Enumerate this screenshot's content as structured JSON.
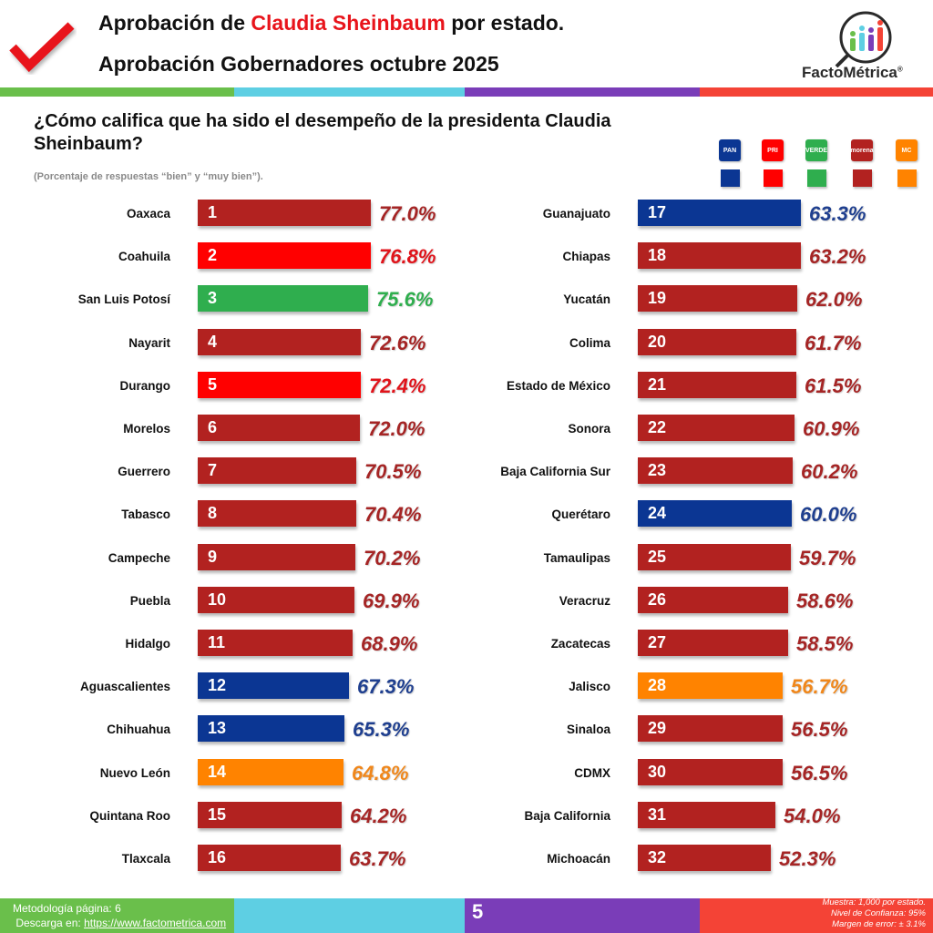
{
  "header": {
    "title_line1_prefix": "Aprobación de ",
    "title_line1_highlight": "Claudia Sheinbaum",
    "title_line1_suffix": " por estado.",
    "title_line2": "Aprobación Gobernadores octubre 2025",
    "logo_text": "FactoMétrica",
    "logo_registered": "®",
    "check_icon": "checkmark-icon"
  },
  "stripe_colors": [
    "#6abf4b",
    "#5ecfe3",
    "#7a3db8",
    "#f44336"
  ],
  "question": "¿Cómo califica que ha sido el desempeño de la presidenta Claudia Sheinbaum?",
  "subtitle": "(Porcentaje de respuestas “bien” y “muy bien”).",
  "legend": [
    {
      "party": "PAN",
      "logo_label": "PAN",
      "color": "#0b3693"
    },
    {
      "party": "PRI",
      "logo_label": "PRI",
      "color": "#ff0000"
    },
    {
      "party": "Verde",
      "logo_label": "VERDE",
      "color": "#2fae4e"
    },
    {
      "party": "Morena",
      "logo_label": "morena",
      "color": "#b22220"
    },
    {
      "party": "Movimiento Ciudadano",
      "logo_label": "MC",
      "color": "#ff8300"
    }
  ],
  "chart_data": {
    "type": "bar",
    "orientation": "horizontal",
    "title": "¿Cómo califica que ha sido el desempeño de la presidenta Claudia Sheinbaum?",
    "subtitle": "(Porcentaje de respuestas “bien” y “muy bien”).",
    "unit": "%",
    "party_colors": {
      "PAN": "#0b3693",
      "PRI": "#ff0000",
      "Verde": "#2fae4e",
      "Morena": "#b22220",
      "MC": "#ff8300"
    },
    "label_colors": {
      "PAN": "#1f3f8f",
      "PRI": "#e0141b",
      "Verde": "#2fae4e",
      "Morena": "#a52525",
      "MC": "#f0871b"
    },
    "columns": [
      [
        {
          "rank": 1,
          "state": "Oaxaca",
          "value": 77.0,
          "label": "77.0%",
          "party": "Morena"
        },
        {
          "rank": 2,
          "state": "Coahuila",
          "value": 76.8,
          "label": "76.8%",
          "party": "PRI"
        },
        {
          "rank": 3,
          "state": "San Luis Potosí",
          "value": 75.6,
          "label": "75.6%",
          "party": "Verde"
        },
        {
          "rank": 4,
          "state": "Nayarit",
          "value": 72.6,
          "label": "72.6%",
          "party": "Morena"
        },
        {
          "rank": 5,
          "state": "Durango",
          "value": 72.4,
          "label": "72.4%",
          "party": "PRI"
        },
        {
          "rank": 6,
          "state": "Morelos",
          "value": 72.0,
          "label": "72.0%",
          "party": "Morena"
        },
        {
          "rank": 7,
          "state": "Guerrero",
          "value": 70.5,
          "label": "70.5%",
          "party": "Morena"
        },
        {
          "rank": 8,
          "state": "Tabasco",
          "value": 70.4,
          "label": "70.4%",
          "party": "Morena"
        },
        {
          "rank": 9,
          "state": "Campeche",
          "value": 70.2,
          "label": "70.2%",
          "party": "Morena"
        },
        {
          "rank": 10,
          "state": "Puebla",
          "value": 69.9,
          "label": "69.9%",
          "party": "Morena"
        },
        {
          "rank": 11,
          "state": "Hidalgo",
          "value": 68.9,
          "label": "68.9%",
          "party": "Morena"
        },
        {
          "rank": 12,
          "state": "Aguascalientes",
          "value": 67.3,
          "label": "67.3%",
          "party": "PAN"
        },
        {
          "rank": 13,
          "state": "Chihuahua",
          "value": 65.3,
          "label": "65.3%",
          "party": "PAN"
        },
        {
          "rank": 14,
          "state": "Nuevo León",
          "value": 64.8,
          "label": "64.8%",
          "party": "MC"
        },
        {
          "rank": 15,
          "state": "Quintana Roo",
          "value": 64.2,
          "label": "64.2%",
          "party": "Morena"
        },
        {
          "rank": 16,
          "state": "Tlaxcala",
          "value": 63.7,
          "label": "63.7%",
          "party": "Morena"
        }
      ],
      [
        {
          "rank": 17,
          "state": "Guanajuato",
          "value": 63.3,
          "label": "63.3%",
          "party": "PAN"
        },
        {
          "rank": 18,
          "state": "Chiapas",
          "value": 63.2,
          "label": "63.2%",
          "party": "Morena"
        },
        {
          "rank": 19,
          "state": "Yucatán",
          "value": 62.0,
          "label": "62.0%",
          "party": "Morena"
        },
        {
          "rank": 20,
          "state": "Colima",
          "value": 61.7,
          "label": "61.7%",
          "party": "Morena"
        },
        {
          "rank": 21,
          "state": "Estado de México",
          "value": 61.5,
          "label": "61.5%",
          "party": "Morena"
        },
        {
          "rank": 22,
          "state": "Sonora",
          "value": 60.9,
          "label": "60.9%",
          "party": "Morena"
        },
        {
          "rank": 23,
          "state": "Baja California Sur",
          "value": 60.2,
          "label": "60.2%",
          "party": "Morena"
        },
        {
          "rank": 24,
          "state": "Querétaro",
          "value": 60.0,
          "label": "60.0%",
          "party": "PAN"
        },
        {
          "rank": 25,
          "state": "Tamaulipas",
          "value": 59.7,
          "label": "59.7%",
          "party": "Morena"
        },
        {
          "rank": 26,
          "state": "Veracruz",
          "value": 58.6,
          "label": "58.6%",
          "party": "Morena"
        },
        {
          "rank": 27,
          "state": "Zacatecas",
          "value": 58.5,
          "label": "58.5%",
          "party": "Morena"
        },
        {
          "rank": 28,
          "state": "Jalisco",
          "value": 56.7,
          "label": "56.7%",
          "party": "MC"
        },
        {
          "rank": 29,
          "state": "Sinaloa",
          "value": 56.5,
          "label": "56.5%",
          "party": "Morena"
        },
        {
          "rank": 30,
          "state": "CDMX",
          "value": 56.5,
          "label": "56.5%",
          "party": "Morena"
        },
        {
          "rank": 31,
          "state": "Baja California",
          "value": 54.0,
          "label": "54.0%",
          "party": "Morena"
        },
        {
          "rank": 32,
          "state": "Michoacán",
          "value": 52.3,
          "label": "52.3%",
          "party": "Morena"
        }
      ]
    ]
  },
  "footer": {
    "methodology": "Metodología página: 6",
    "download_prefix": "Descarga en: ",
    "download_link": "https://www.factometrica.com",
    "page_number": "5",
    "sample": "Muestra:  1,000 por estado.",
    "confidence": "Nivel de Confianza: 95%",
    "margin": "Margen de error: ± 3.1%"
  }
}
